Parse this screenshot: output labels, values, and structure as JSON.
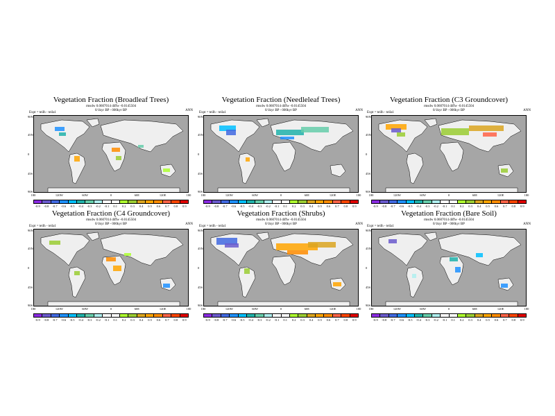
{
  "experiment": "Expt = teilh - teila1",
  "season": "ANN",
  "stats_line2": "0/1kyr BP - 000kyr BP",
  "lat_ticks": [
    "90N",
    "45N",
    "0",
    "45S",
    "90S"
  ],
  "lon_ticks": [
    "180",
    "120W",
    "60W",
    "0",
    "60E",
    "120E",
    "180"
  ],
  "colorbar_colors": [
    "#8a2be2",
    "#6a5acd",
    "#4169e1",
    "#1e90ff",
    "#00bfff",
    "#20b2aa",
    "#66cdaa",
    "#afeeee",
    "#ffffff",
    "#ffffff",
    "#adff2f",
    "#9acd32",
    "#daa520",
    "#ffa500",
    "#ff8c00",
    "#ff6347",
    "#ff4500",
    "#e00000"
  ],
  "colorbar_wide": [
    "-0.9",
    "-0.8",
    "-0.7",
    "-0.6",
    "-0.5",
    "-0.4",
    "-0.3",
    "-0.2",
    "-0.1",
    "0.1",
    "0.2",
    "0.3",
    "0.4",
    "0.5",
    "0.6",
    "0.7",
    "0.8",
    "0.9"
  ],
  "colorbar_narrow": [
    "-0.9",
    "-0.8",
    "-0.7",
    "-0.6",
    "-0.5",
    "-0.4",
    "-0.3",
    "-0.2",
    "-0.1",
    "0.1",
    "0.2",
    "0.3",
    "0.4",
    "0.5",
    "0.6",
    "0.7",
    "0.8",
    "0.9"
  ],
  "panels": [
    {
      "title": "Vegetation Fraction (Broadleaf Trees)",
      "stats": "rmsdw 0.0607014 diffw -0.0145504",
      "style": "wide"
    },
    {
      "title": "Vegetation Fraction (Needleleaf Trees)",
      "stats": "rmsdw 0.0607014 diffw -0.0145504",
      "style": "narrow"
    },
    {
      "title": "Vegetation Fraction (C3 Groundcover)",
      "stats": "rmsdw 0.0607014 diffw -0.0145504",
      "style": "narrow"
    },
    {
      "title": "Vegetation Fraction (C4 Groundcover)",
      "stats": "rmsdw 0.0607014 diffw -0.0145504",
      "style": "wide"
    },
    {
      "title": "Vegetation Fraction (Shrubs)",
      "stats": "rmsdw 0.0607014 diffw -0.0145504",
      "style": "narrow"
    },
    {
      "title": "Vegetation Fraction (Bare Soil)",
      "stats": "rmsdw 0.0607014 diffw -0.0145504",
      "style": "narrow"
    }
  ]
}
